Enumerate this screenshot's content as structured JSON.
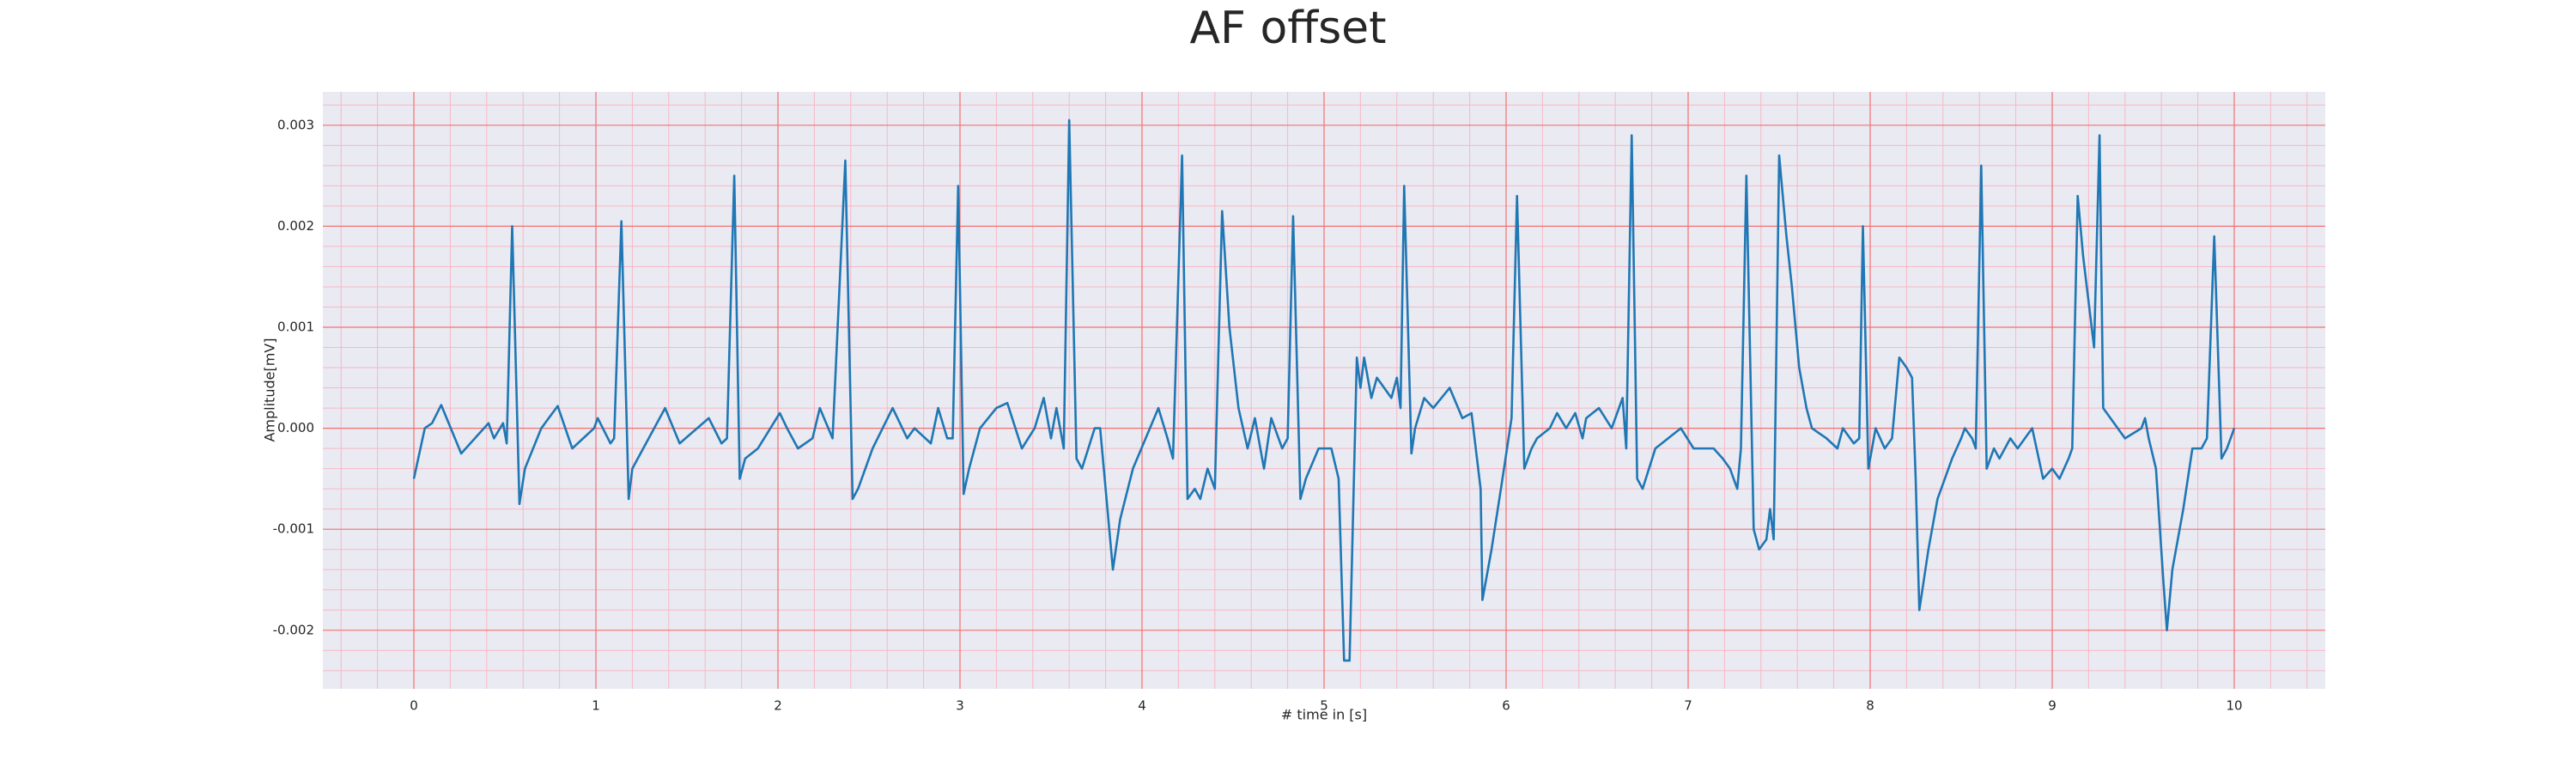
{
  "chart_data": {
    "type": "line",
    "title": "AF offset",
    "xlabel": "# time in [s]",
    "ylabel": "Amplitude[mV]",
    "color": "#1f77b4",
    "background": "#eaeaf2",
    "grid": true,
    "grid_color": "#f47070",
    "minor_grid": true,
    "minor_grid_color": "#f7b8c4",
    "minor_divisions": 5,
    "xlim": [
      -0.5,
      10.5
    ],
    "xticks": [
      0,
      1,
      2,
      3,
      4,
      5,
      6,
      7,
      8,
      9,
      10
    ],
    "ylim": [
      -0.00258,
      0.00333
    ],
    "yticks": [
      -0.002,
      -0.001,
      {
        "value": 0,
        "label": "0.000"
      },
      0.001,
      0.002,
      0.003
    ],
    "x": [
      0,
      0.06,
      0.1,
      0.15,
      0.26,
      0.41,
      0.44,
      0.49,
      0.51,
      0.54,
      0.58,
      0.61,
      0.7,
      0.79,
      0.87,
      0.99,
      1.01,
      1.08,
      1.1,
      1.14,
      1.18,
      1.2,
      1.26,
      1.38,
      1.46,
      1.62,
      1.69,
      1.72,
      1.76,
      1.79,
      1.82,
      1.89,
      2.01,
      2.05,
      2.11,
      2.19,
      2.23,
      2.3,
      2.37,
      2.41,
      2.44,
      2.52,
      2.63,
      2.71,
      2.75,
      2.84,
      2.88,
      2.93,
      2.96,
      2.99,
      3.02,
      3.05,
      3.11,
      3.2,
      3.26,
      3.34,
      3.41,
      3.46,
      3.5,
      3.53,
      3.57,
      3.6,
      3.64,
      3.67,
      3.74,
      3.77,
      3.81,
      3.84,
      3.88,
      3.95,
      4.02,
      4.09,
      4.14,
      4.17,
      4.22,
      4.25,
      4.29,
      4.32,
      4.36,
      4.4,
      4.44,
      4.48,
      4.53,
      4.58,
      4.62,
      4.67,
      4.71,
      4.77,
      4.8,
      4.83,
      4.87,
      4.9,
      4.97,
      5.04,
      5.08,
      5.11,
      5.14,
      5.18,
      5.2,
      5.22,
      5.26,
      5.29,
      5.37,
      5.4,
      5.42,
      5.44,
      5.48,
      5.5,
      5.55,
      5.6,
      5.69,
      5.76,
      5.81,
      5.86,
      5.87,
      5.92,
      5.98,
      6.03,
      6.06,
      6.1,
      6.14,
      6.17,
      6.24,
      6.28,
      6.33,
      6.38,
      6.42,
      6.44,
      6.51,
      6.58,
      6.64,
      6.66,
      6.69,
      6.72,
      6.75,
      6.82,
      6.89,
      6.96,
      7.03,
      7.14,
      7.19,
      7.23,
      7.27,
      7.29,
      7.32,
      7.36,
      7.39,
      7.43,
      7.45,
      7.47,
      7.5,
      7.54,
      7.57,
      7.61,
      7.65,
      7.68,
      7.76,
      7.82,
      7.85,
      7.91,
      7.94,
      7.96,
      7.99,
      8.03,
      8.08,
      8.12,
      8.16,
      8.2,
      8.23,
      8.25,
      8.27,
      8.32,
      8.37,
      8.45,
      8.5,
      8.52,
      8.56,
      8.58,
      8.61,
      8.64,
      8.68,
      8.71,
      8.77,
      8.81,
      8.89,
      8.95,
      9.0,
      9.04,
      9.09,
      9.11,
      9.14,
      9.17,
      9.21,
      9.23,
      9.26,
      9.28,
      9.32,
      9.36,
      9.4,
      9.49,
      9.51,
      9.53,
      9.57,
      9.61,
      9.63,
      9.66,
      9.72,
      9.77,
      9.82,
      9.85,
      9.89,
      9.93,
      9.96,
      10.0
    ],
    "values": [
      -0.0005,
      0.0,
      5e-05,
      0.00023,
      -0.00025,
      5e-05,
      -0.0001,
      5e-05,
      -0.00015,
      0.002,
      -0.00075,
      -0.0004,
      0.0,
      0.00022,
      -0.0002,
      0.0,
      0.0001,
      -0.00015,
      -0.0001,
      0.00205,
      -0.0007,
      -0.0004,
      -0.0002,
      0.0002,
      -0.00015,
      0.0001,
      -0.00015,
      -0.0001,
      0.0025,
      -0.0005,
      -0.0003,
      -0.0002,
      0.00015,
      0.0,
      -0.0002,
      -0.0001,
      0.0002,
      -0.0001,
      0.00265,
      -0.0007,
      -0.0006,
      -0.0002,
      0.0002,
      -0.0001,
      0.0,
      -0.00015,
      0.0002,
      -0.0001,
      -0.0001,
      0.0024,
      -0.00065,
      -0.0004,
      0.0,
      0.0002,
      0.00025,
      -0.0002,
      0.0,
      0.0003,
      -0.0001,
      0.0002,
      -0.0002,
      0.00305,
      -0.0003,
      -0.0004,
      0.0,
      0.0,
      -0.0008,
      -0.0014,
      -0.0009,
      -0.0004,
      -0.0001,
      0.0002,
      -0.0001,
      -0.0003,
      0.0027,
      -0.0007,
      -0.0006,
      -0.0007,
      -0.0004,
      -0.0006,
      0.00215,
      0.001,
      0.0002,
      -0.0002,
      0.0001,
      -0.0004,
      0.0001,
      -0.0002,
      -0.0001,
      0.0021,
      -0.0007,
      -0.0005,
      -0.0002,
      -0.0002,
      -0.0005,
      -0.0023,
      -0.0023,
      0.0007,
      0.0004,
      0.0007,
      0.0003,
      0.0005,
      0.0003,
      0.0005,
      0.0002,
      0.0024,
      -0.00025,
      0.0,
      0.0003,
      0.0002,
      0.0004,
      0.0001,
      0.00015,
      -0.0006,
      -0.0017,
      -0.0012,
      -0.0005,
      0.0001,
      0.0023,
      -0.0004,
      -0.0002,
      -0.0001,
      0.0,
      0.00015,
      0.0,
      0.00015,
      -0.0001,
      0.0001,
      0.0002,
      0.0,
      0.0003,
      -0.0002,
      0.0029,
      -0.0005,
      -0.0006,
      -0.0002,
      -0.0001,
      0.0,
      -0.0002,
      -0.0002,
      -0.0003,
      -0.0004,
      -0.0006,
      -0.0002,
      0.0025,
      -0.001,
      -0.0012,
      -0.0011,
      -0.0008,
      -0.0011,
      0.0027,
      0.0019,
      0.0014,
      0.0006,
      0.0002,
      0.0,
      -0.0001,
      -0.0002,
      0.0,
      -0.00015,
      -0.0001,
      0.002,
      -0.0004,
      0.0,
      -0.0002,
      -0.0001,
      0.0007,
      0.0006,
      0.0005,
      -0.0005,
      -0.0018,
      -0.0012,
      -0.0007,
      -0.0003,
      -0.0001,
      0.0,
      -0.0001,
      -0.0002,
      0.0026,
      -0.0004,
      -0.0002,
      -0.0003,
      -0.0001,
      -0.0002,
      0.0,
      -0.0005,
      -0.0004,
      -0.0005,
      -0.0003,
      -0.0002,
      0.0023,
      0.0017,
      0.0011,
      0.0008,
      0.0029,
      0.0002,
      0.0001,
      0.0,
      -0.0001,
      0.0,
      0.0001,
      -0.0001,
      -0.0004,
      -0.0015,
      -0.002,
      -0.0014,
      -0.0008,
      -0.0002,
      -0.0002,
      -0.0001,
      0.0019,
      -0.0003,
      -0.0002,
      0.0
    ]
  }
}
